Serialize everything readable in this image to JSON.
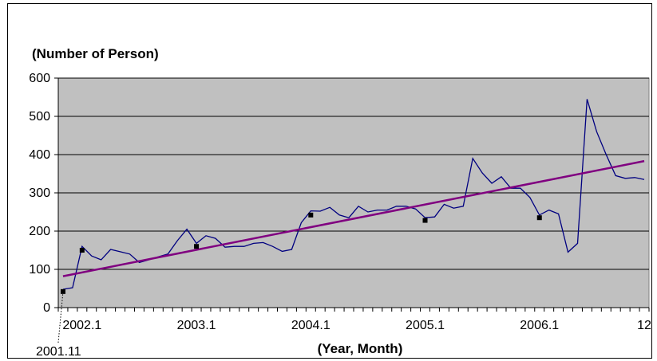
{
  "chart_data": {
    "type": "line",
    "y_axis_title": "(Number of Person)",
    "x_axis_title": "(Year, Month)",
    "ylim": [
      0,
      600
    ],
    "y_ticks": [
      "0",
      "100",
      "200",
      "300",
      "400",
      "500",
      "600"
    ],
    "x_tick_labels": [
      {
        "label": "2002.1",
        "index": 2
      },
      {
        "label": "2003.1",
        "index": 14
      },
      {
        "label": "2004.1",
        "index": 26
      },
      {
        "label": "2005.1",
        "index": 38
      },
      {
        "label": "2006.1",
        "index": 50
      },
      {
        "label": "12",
        "index": 61
      }
    ],
    "start_annotation": "2001.11",
    "grid": true,
    "plot_background": "#c0c0c0",
    "line_color": "#000080",
    "trend_color": "#800080",
    "series": [
      {
        "values": [
          48,
          52,
          160,
          135,
          125,
          152,
          146,
          140,
          118,
          125,
          133,
          140,
          175,
          205,
          168,
          188,
          181,
          158,
          160,
          160,
          168,
          170,
          160,
          147,
          152,
          222,
          253,
          252,
          262,
          242,
          235,
          265,
          250,
          255,
          255,
          265,
          265,
          258,
          235,
          237,
          270,
          260,
          265,
          390,
          352,
          325,
          342,
          312,
          312,
          288,
          242,
          255,
          245,
          145,
          168,
          545,
          460,
          400,
          345,
          338,
          340,
          335
        ]
      }
    ],
    "markers": [
      {
        "index": 0,
        "value": 42
      },
      {
        "index": 2,
        "value": 150
      },
      {
        "index": 14,
        "value": 160
      },
      {
        "index": 26,
        "value": 242
      },
      {
        "index": 38,
        "value": 228
      },
      {
        "index": 50,
        "value": 235
      }
    ],
    "trendline": {
      "start": 82,
      "end": 383
    }
  }
}
